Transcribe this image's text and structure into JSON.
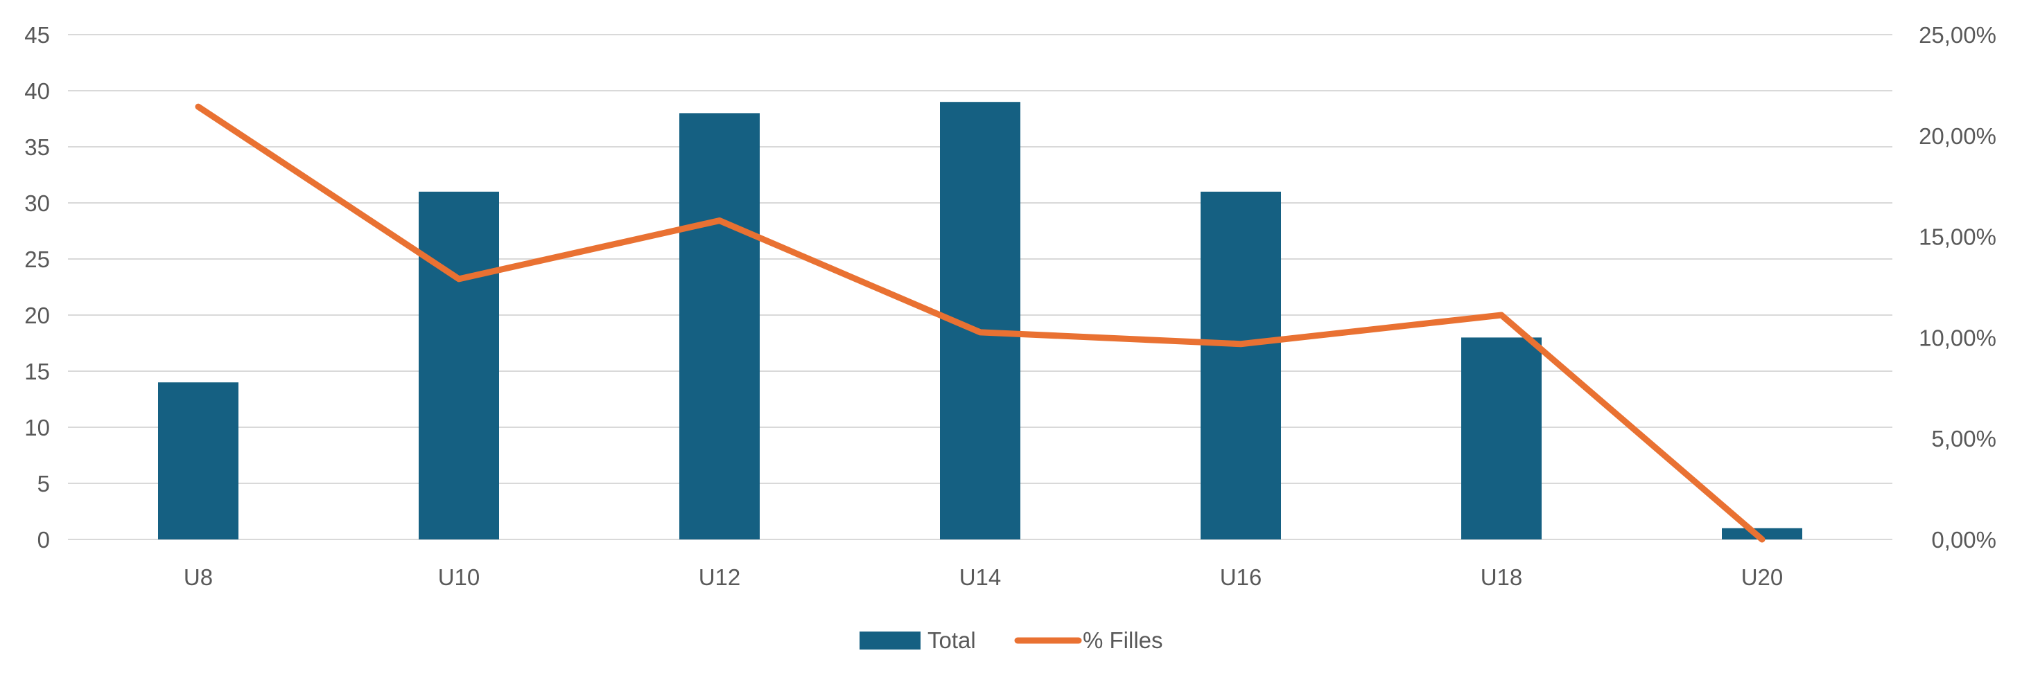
{
  "chart_data": {
    "type": "bar+line",
    "categories": [
      "U8",
      "U10",
      "U12",
      "U14",
      "U16",
      "U18",
      "U20"
    ],
    "series": [
      {
        "name": "Total",
        "type": "bar",
        "axis": "left",
        "color": "#156082",
        "values": [
          14,
          31,
          38,
          39,
          31,
          18,
          1
        ]
      },
      {
        "name": "% Filles",
        "type": "line",
        "axis": "right",
        "color": "#E97132",
        "values": [
          21.43,
          12.9,
          15.79,
          10.26,
          9.68,
          11.11,
          0.0
        ]
      }
    ],
    "y_left": {
      "range": [
        0,
        45
      ],
      "ticks": [
        "0",
        "5",
        "10",
        "15",
        "20",
        "25",
        "30",
        "35",
        "40",
        "45"
      ]
    },
    "y_right": {
      "range": [
        0,
        25
      ],
      "ticks": [
        "0,00%",
        "5,00%",
        "10,00%",
        "15,00%",
        "20,00%",
        "25,00%"
      ]
    },
    "grid": true,
    "legend_placement": "bottom"
  }
}
